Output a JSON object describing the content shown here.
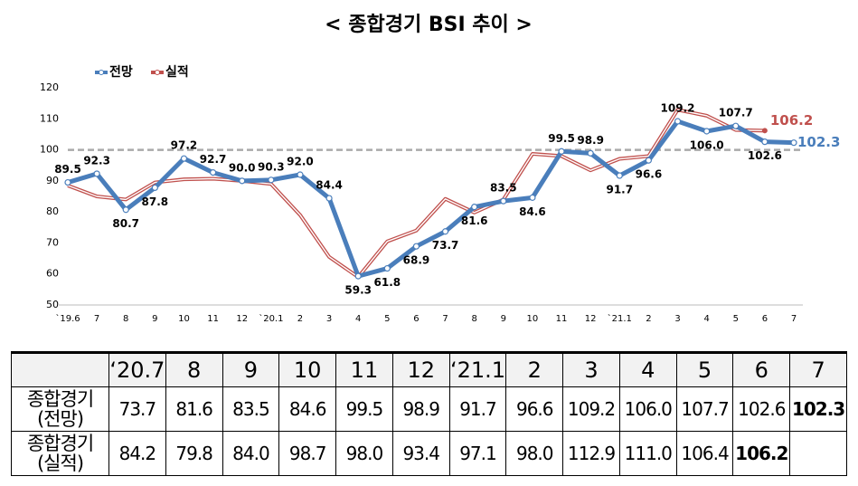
{
  "chart_data": {
    "type": "line",
    "title": "< 종합경기 BSI 추이 >",
    "categories": [
      "`19.6",
      "7",
      "8",
      "9",
      "10",
      "11",
      "12",
      "`20.1",
      "2",
      "3",
      "4",
      "5",
      "6",
      "7",
      "8",
      "9",
      "10",
      "11",
      "12",
      "`21.1",
      "2",
      "3",
      "4",
      "5",
      "6",
      "7"
    ],
    "series": [
      {
        "name": "전망",
        "color": "#4a7ebb",
        "values": [
          89.5,
          92.3,
          80.7,
          87.8,
          97.2,
          92.7,
          90.0,
          90.3,
          92.0,
          84.4,
          59.3,
          61.8,
          68.9,
          73.7,
          81.6,
          83.5,
          84.6,
          99.5,
          98.9,
          91.7,
          96.6,
          109.2,
          106.0,
          107.7,
          102.6,
          102.3
        ],
        "value_labels": [
          "89.5",
          "92.3",
          "80.7",
          "87.8",
          "97.2",
          "92.7",
          "90.0",
          "90.3",
          "92.0",
          "84.4",
          "59.3",
          "61.8",
          "68.9",
          "73.7",
          "81.6",
          "83.5",
          "84.6",
          "99.5",
          "98.9",
          "91.7",
          "96.6",
          "109.2",
          "106.0",
          "107.7",
          "102.6",
          "102.3"
        ]
      },
      {
        "name": "실적",
        "color": "#c0504d",
        "values": [
          88.5,
          85,
          84,
          89.5,
          90.5,
          90.7,
          90,
          89,
          79,
          65.5,
          59,
          70.5,
          74,
          84.2,
          79.8,
          84.0,
          98.7,
          98.0,
          93.4,
          97.1,
          98.0,
          112.9,
          111.0,
          106.4,
          106.2,
          null
        ],
        "value_labels": [
          null,
          null,
          null,
          null,
          null,
          null,
          null,
          null,
          null,
          null,
          null,
          null,
          null,
          null,
          null,
          null,
          null,
          null,
          null,
          null,
          null,
          null,
          null,
          null,
          "106.2",
          null
        ]
      }
    ],
    "ylim": [
      50,
      120
    ],
    "yticks": [
      50,
      60,
      70,
      80,
      90,
      100,
      110,
      120
    ],
    "reference_line": 100,
    "legend": "top-left"
  },
  "table": {
    "columns": [
      "‘20.7",
      "8",
      "9",
      "10",
      "11",
      "12",
      "‘21.1",
      "2",
      "3",
      "4",
      "5",
      "6",
      "7"
    ],
    "rows": [
      {
        "label": "종합경기\n(전망)",
        "values": [
          "73.7",
          "81.6",
          "83.5",
          "84.6",
          "99.5",
          "98.9",
          "91.7",
          "96.6",
          "109.2",
          "106.0",
          "107.7",
          "102.6",
          "102.3"
        ]
      },
      {
        "label": "종합경기\n(실적)",
        "values": [
          "84.2",
          "79.8",
          "84.0",
          "98.7",
          "98.0",
          "93.4",
          "97.1",
          "98.0",
          "112.9",
          "111.0",
          "106.4",
          "106.2"
        ]
      }
    ]
  }
}
